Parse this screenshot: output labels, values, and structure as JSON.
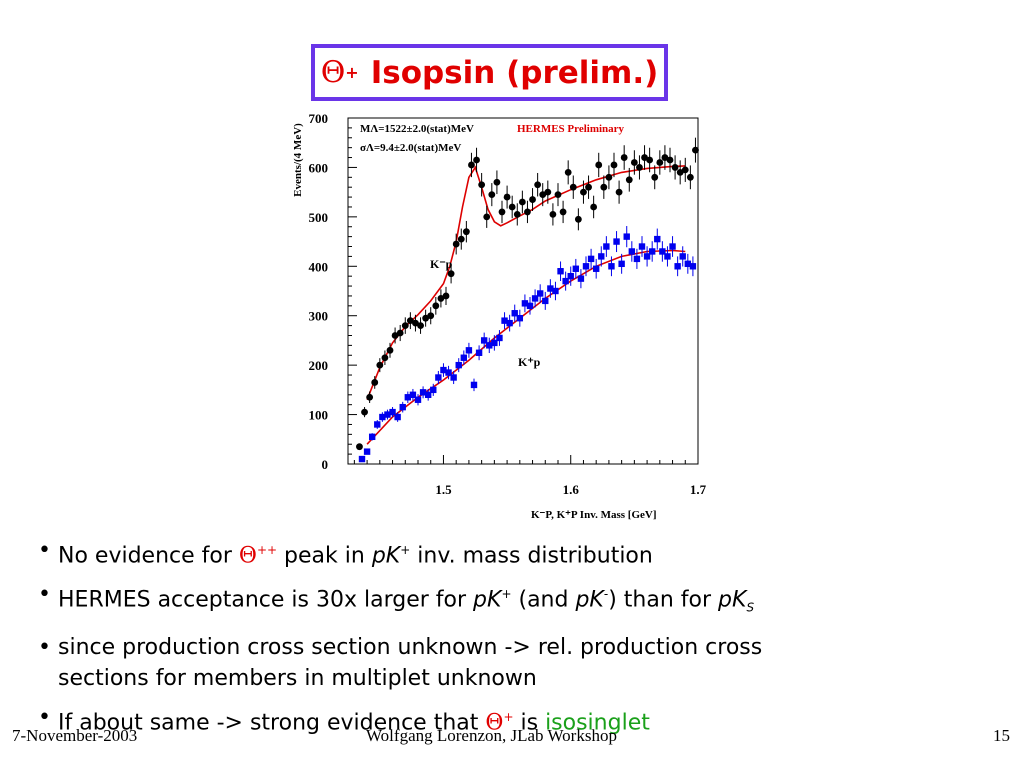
{
  "title": {
    "symbol": "Θ",
    "sup": "+",
    "text": "Isopsin (prelim.)"
  },
  "chart_data": {
    "type": "scatter",
    "ylabel": "Events/(4 MeV)",
    "xlabel_line": "K⁻P,  K⁺P     Inv. Mass [GeV]",
    "xlim": [
      1.425,
      1.7
    ],
    "ylim": [
      0,
      700
    ],
    "xticks": [
      1.5,
      1.6,
      1.7
    ],
    "yticks": [
      0,
      100,
      200,
      300,
      400,
      500,
      600,
      700
    ],
    "xtick_labels": [
      "1.5",
      "1.6",
      "1.7"
    ],
    "ytick_labels": [
      "0",
      "100",
      "200",
      "300",
      "400",
      "500",
      "600",
      "700"
    ],
    "preliminary_label": "HERMES Preliminary",
    "fit_text_1": "MΛ=1522±2.0(stat)MeV",
    "fit_text_2": "σΛ=9.4±2.0(stat)MeV",
    "colors": {
      "kminus": "#000000",
      "kplus": "#0000ee",
      "fit": "#dd0000",
      "preliminary": "#dd0000"
    },
    "series": [
      {
        "name": "K⁻p",
        "marker": "circle",
        "x": [
          1.434,
          1.438,
          1.442,
          1.446,
          1.45,
          1.454,
          1.458,
          1.462,
          1.466,
          1.47,
          1.474,
          1.478,
          1.482,
          1.486,
          1.49,
          1.494,
          1.498,
          1.502,
          1.506,
          1.51,
          1.514,
          1.518,
          1.522,
          1.526,
          1.53,
          1.534,
          1.538,
          1.542,
          1.546,
          1.55,
          1.554,
          1.558,
          1.562,
          1.566,
          1.57,
          1.574,
          1.578,
          1.582,
          1.586,
          1.59,
          1.594,
          1.598,
          1.602,
          1.606,
          1.61,
          1.614,
          1.618,
          1.622,
          1.626,
          1.63,
          1.634,
          1.638,
          1.642,
          1.646,
          1.65,
          1.654,
          1.658,
          1.662,
          1.666,
          1.67,
          1.674,
          1.678,
          1.682,
          1.686,
          1.69,
          1.694,
          1.698
        ],
        "y": [
          35,
          105,
          135,
          165,
          200,
          215,
          230,
          260,
          265,
          280,
          290,
          285,
          280,
          295,
          300,
          320,
          335,
          340,
          385,
          445,
          455,
          470,
          605,
          615,
          565,
          500,
          545,
          570,
          510,
          540,
          520,
          505,
          530,
          510,
          535,
          565,
          545,
          550,
          505,
          545,
          510,
          590,
          560,
          495,
          550,
          560,
          520,
          605,
          560,
          580,
          605,
          550,
          620,
          575,
          610,
          600,
          620,
          615,
          580,
          610,
          620,
          615,
          600,
          590,
          595,
          580,
          635
        ]
      },
      {
        "name": "K⁺p",
        "marker": "square",
        "x": [
          1.436,
          1.44,
          1.444,
          1.448,
          1.452,
          1.456,
          1.46,
          1.464,
          1.468,
          1.472,
          1.476,
          1.48,
          1.484,
          1.488,
          1.492,
          1.496,
          1.5,
          1.504,
          1.508,
          1.512,
          1.516,
          1.52,
          1.524,
          1.528,
          1.532,
          1.536,
          1.54,
          1.544,
          1.548,
          1.552,
          1.556,
          1.56,
          1.564,
          1.568,
          1.572,
          1.576,
          1.58,
          1.584,
          1.588,
          1.592,
          1.596,
          1.6,
          1.604,
          1.608,
          1.612,
          1.616,
          1.62,
          1.624,
          1.628,
          1.632,
          1.636,
          1.64,
          1.644,
          1.648,
          1.652,
          1.656,
          1.66,
          1.664,
          1.668,
          1.672,
          1.676,
          1.68,
          1.684,
          1.688,
          1.692,
          1.696
        ],
        "y": [
          10,
          25,
          55,
          80,
          95,
          100,
          105,
          95,
          115,
          135,
          140,
          130,
          145,
          140,
          150,
          175,
          190,
          185,
          175,
          200,
          215,
          230,
          160,
          225,
          250,
          240,
          245,
          255,
          290,
          285,
          305,
          295,
          325,
          320,
          335,
          345,
          330,
          355,
          350,
          390,
          370,
          380,
          395,
          375,
          400,
          415,
          395,
          420,
          440,
          400,
          450,
          405,
          460,
          430,
          415,
          440,
          420,
          430,
          455,
          430,
          420,
          440,
          400,
          420,
          405,
          400
        ]
      }
    ],
    "fits": [
      {
        "name": "K⁻p fit",
        "x": [
          1.44,
          1.45,
          1.46,
          1.47,
          1.48,
          1.49,
          1.5,
          1.505,
          1.51,
          1.515,
          1.52,
          1.525,
          1.53,
          1.535,
          1.54,
          1.545,
          1.55,
          1.56,
          1.57,
          1.58,
          1.6,
          1.62,
          1.64,
          1.66,
          1.68,
          1.69
        ],
        "y": [
          130,
          195,
          245,
          278,
          302,
          330,
          365,
          400,
          450,
          520,
          580,
          600,
          560,
          515,
          490,
          482,
          488,
          502,
          515,
          532,
          555,
          575,
          590,
          598,
          602,
          603
        ]
      },
      {
        "name": "K⁺p fit",
        "x": [
          1.44,
          1.46,
          1.48,
          1.5,
          1.52,
          1.54,
          1.56,
          1.58,
          1.6,
          1.62,
          1.64,
          1.66,
          1.68,
          1.69
        ],
        "y": [
          40,
          95,
          135,
          170,
          210,
          255,
          295,
          335,
          370,
          400,
          420,
          430,
          432,
          430
        ]
      }
    ]
  },
  "bullets": {
    "b1": {
      "pre": "No evidence for ",
      "symbol": "Θ",
      "sup": "++",
      "mid": " peak in ",
      "ital": "pK",
      "ital_sup": "+",
      "post": " inv. mass distribution"
    },
    "b2": {
      "pre": "HERMES acceptance is 30x larger for ",
      "ital1": "pK",
      "sup1": "+",
      "mid1": " (and ",
      "ital2": "pK",
      "sup2": "-",
      "mid2": ") than for ",
      "ital3": "pK",
      "sub3": "S"
    },
    "b3": {
      "line1": "since production cross section unknown -> rel. production cross",
      "line2": "sections for members in multiplet unknown"
    },
    "b4": {
      "pre": "If about same -> strong evidence that ",
      "symbol": "Θ",
      "sup": "+",
      "mid": " is ",
      "green": "isosinglet"
    }
  },
  "footer": {
    "date": "7-November-2003",
    "center": "Wolfgang Lorenzon, JLab Workshop",
    "page": "15"
  }
}
